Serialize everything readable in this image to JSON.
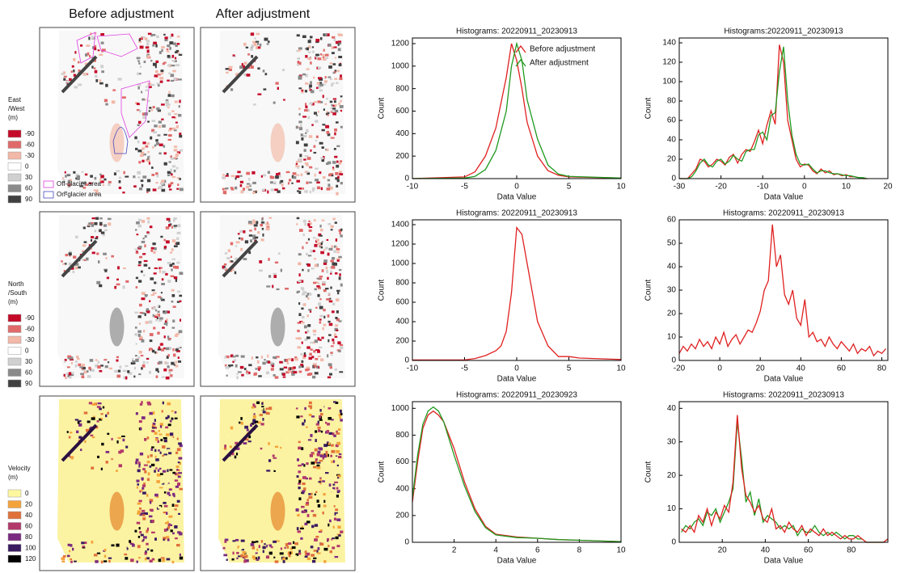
{
  "column_headers": [
    "Before adjustment",
    "After adjustment"
  ],
  "map_legends": [
    {
      "title": [
        "East",
        "/West",
        "(m)"
      ],
      "items": [
        {
          "label": -90,
          "color": "#c40a28"
        },
        {
          "label": -60,
          "color": "#e06a6a"
        },
        {
          "label": -30,
          "color": "#f2b8a8"
        },
        {
          "label": 0,
          "color": "#ffffff"
        },
        {
          "label": 30,
          "color": "#d0d0d0"
        },
        {
          "label": 60,
          "color": "#8a8a8a"
        },
        {
          "label": 90,
          "color": "#404040"
        }
      ]
    },
    {
      "title": [
        "North",
        "/South",
        "(m)"
      ],
      "items": [
        {
          "label": -90,
          "color": "#c40a28"
        },
        {
          "label": -60,
          "color": "#e06a6a"
        },
        {
          "label": -30,
          "color": "#f2b8a8"
        },
        {
          "label": 0,
          "color": "#ffffff"
        },
        {
          "label": 30,
          "color": "#d0d0d0"
        },
        {
          "label": 60,
          "color": "#8a8a8a"
        },
        {
          "label": 90,
          "color": "#404040"
        }
      ]
    },
    {
      "title": [
        "Velocity",
        "(m)"
      ],
      "items": [
        {
          "label": 0,
          "color": "#fdf7a0"
        },
        {
          "label": 20,
          "color": "#f4a23a"
        },
        {
          "label": 40,
          "color": "#e0703a"
        },
        {
          "label": 60,
          "color": "#b2386a"
        },
        {
          "label": 80,
          "color": "#7a2a80"
        },
        {
          "label": 100,
          "color": "#3a1a60"
        },
        {
          "label": 120,
          "color": "#000000"
        }
      ]
    }
  ],
  "map_outlines": [
    {
      "label": "Off-glacier area",
      "color": "#e040e0"
    },
    {
      "label": "On-glacier area",
      "color": "#4848c0"
    }
  ],
  "chart_data": [
    {
      "type": "line",
      "title": "Histograms: 20220911_20230913",
      "xlabel": "Data Value",
      "ylabel": "Count",
      "x": [
        -10,
        -5,
        -4,
        -3,
        -2,
        -1,
        -0.5,
        0,
        0.5,
        1,
        2,
        3,
        4,
        5,
        10
      ],
      "series": [
        {
          "name": "Before adjustment",
          "color": "#e02020",
          "values": [
            0,
            15,
            60,
            200,
            450,
            900,
            1200,
            1050,
            800,
            500,
            200,
            70,
            30,
            15,
            5
          ]
        },
        {
          "name": "After adjustment",
          "color": "#209a20",
          "values": [
            0,
            5,
            20,
            80,
            250,
            600,
            1000,
            1200,
            1050,
            700,
            350,
            120,
            40,
            20,
            5
          ]
        }
      ],
      "xlim": [
        -10,
        10
      ],
      "xticks": [
        -10,
        -5,
        0,
        5,
        10
      ],
      "ylim": [
        0,
        1250
      ],
      "yticks": [
        0,
        200,
        400,
        600,
        800,
        1000,
        1200
      ],
      "legend": "upper right"
    },
    {
      "type": "line",
      "title": "Histograms:20220911_20230913",
      "xlabel": "Data Value",
      "ylabel": "Count",
      "x": [
        -30,
        -29,
        -28,
        -27,
        -26,
        -25,
        -24,
        -23,
        -22,
        -21,
        -20,
        -19,
        -18,
        -17,
        -16,
        -15,
        -14,
        -13,
        -12,
        -11,
        -10,
        -9,
        -8,
        -7,
        -6,
        -5,
        -4,
        -3,
        -2,
        -1,
        0,
        1,
        2,
        3,
        4,
        5,
        6,
        7,
        8,
        9,
        10,
        11,
        12,
        13,
        14,
        15
      ],
      "series": [
        {
          "color": "#e02020",
          "values": [
            0,
            0,
            0,
            5,
            10,
            20,
            18,
            12,
            15,
            20,
            18,
            14,
            22,
            25,
            16,
            25,
            30,
            28,
            38,
            50,
            36,
            55,
            70,
            56,
            138,
            120,
            60,
            40,
            20,
            12,
            15,
            14,
            8,
            5,
            10,
            6,
            8,
            4,
            5,
            3,
            4,
            2,
            2,
            1,
            0,
            0
          ]
        },
        {
          "color": "#209a20",
          "values": [
            0,
            0,
            0,
            2,
            8,
            16,
            20,
            14,
            12,
            18,
            20,
            15,
            18,
            24,
            20,
            18,
            28,
            30,
            30,
            45,
            48,
            40,
            65,
            68,
            110,
            136,
            80,
            45,
            25,
            15,
            14,
            15,
            10,
            6,
            8,
            8,
            6,
            5,
            5,
            4,
            3,
            3,
            2,
            1,
            1,
            0
          ]
        }
      ],
      "xlim": [
        -30,
        20
      ],
      "xticks": [
        -30,
        -20,
        -10,
        0,
        10,
        20
      ],
      "ylim": [
        0,
        145
      ],
      "yticks": [
        0,
        20,
        40,
        60,
        80,
        100,
        120,
        140
      ]
    },
    {
      "type": "line",
      "title": "Histograms: 20220911_20230913",
      "xlabel": "Data Value",
      "ylabel": "Count",
      "x": [
        -10,
        -5,
        -4,
        -3,
        -2,
        -1.5,
        -1,
        -0.5,
        0,
        0.5,
        1,
        1.5,
        2,
        3,
        4,
        5,
        6,
        10
      ],
      "series": [
        {
          "color": "#e02020",
          "values": [
            5,
            5,
            20,
            50,
            100,
            150,
            300,
            700,
            1370,
            1300,
            1000,
            700,
            400,
            150,
            40,
            40,
            25,
            10
          ]
        }
      ],
      "xlim": [
        -10,
        10
      ],
      "xticks": [
        -10,
        -5,
        0,
        5,
        10
      ],
      "ylim": [
        0,
        1450
      ],
      "yticks": [
        0,
        200,
        400,
        600,
        800,
        1000,
        1200,
        1400
      ]
    },
    {
      "type": "line",
      "title": "Histograms: 20220911_20230913",
      "xlabel": "Data Value",
      "ylabel": "Count",
      "x": [
        -20,
        -18,
        -16,
        -14,
        -12,
        -10,
        -8,
        -6,
        -4,
        -2,
        0,
        2,
        4,
        6,
        8,
        10,
        12,
        14,
        16,
        18,
        20,
        22,
        24,
        26,
        28,
        30,
        32,
        34,
        36,
        38,
        40,
        42,
        44,
        46,
        48,
        50,
        52,
        54,
        56,
        58,
        60,
        62,
        64,
        66,
        68,
        70,
        72,
        74,
        76,
        78,
        80,
        82
      ],
      "series": [
        {
          "color": "#e02020",
          "values": [
            3,
            6,
            4,
            7,
            5,
            9,
            6,
            8,
            5,
            10,
            7,
            12,
            6,
            9,
            11,
            7,
            10,
            13,
            12,
            16,
            21,
            30,
            34,
            58,
            40,
            45,
            28,
            24,
            30,
            18,
            15,
            26,
            10,
            12,
            8,
            9,
            6,
            10,
            7,
            5,
            8,
            6,
            4,
            7,
            3,
            5,
            4,
            6,
            2,
            4,
            3,
            5
          ]
        }
      ],
      "xlim": [
        -20,
        83
      ],
      "xticks": [
        -20,
        0,
        20,
        40,
        60,
        80
      ],
      "ylim": [
        0,
        60
      ],
      "yticks": [
        0,
        10,
        20,
        30,
        40,
        50,
        60
      ]
    },
    {
      "type": "line",
      "title": "Histograms: 20220911_20230923",
      "xlabel": "Data Value",
      "ylabel": "Count",
      "x": [
        0,
        0.25,
        0.5,
        0.75,
        1,
        1.25,
        1.5,
        2,
        2.5,
        3,
        3.5,
        4,
        5,
        6,
        7,
        8,
        9,
        10
      ],
      "series": [
        {
          "color": "#e02020",
          "values": [
            300,
            600,
            850,
            950,
            980,
            950,
            900,
            700,
            450,
            250,
            120,
            60,
            40,
            30,
            20,
            15,
            10,
            5
          ]
        },
        {
          "color": "#209a20",
          "values": [
            330,
            650,
            880,
            980,
            1010,
            980,
            900,
            650,
            420,
            230,
            110,
            55,
            35,
            30,
            20,
            15,
            10,
            5
          ]
        }
      ],
      "xlim": [
        0,
        10
      ],
      "xticks": [
        2,
        4,
        6,
        8,
        10
      ],
      "ylim": [
        0,
        1050
      ],
      "yticks": [
        0,
        200,
        400,
        600,
        800,
        1000
      ]
    },
    {
      "type": "line",
      "title": "Histograms: 20220911_20230913",
      "xlabel": "Data Value",
      "ylabel": "Count",
      "x": [
        1,
        3,
        5,
        7,
        9,
        11,
        13,
        15,
        17,
        19,
        21,
        23,
        25,
        27,
        29,
        31,
        33,
        35,
        37,
        39,
        41,
        43,
        45,
        47,
        49,
        51,
        53,
        55,
        57,
        59,
        61,
        63,
        65,
        67,
        69,
        71,
        73,
        75,
        77,
        79,
        81,
        83,
        85,
        87,
        89,
        91,
        93,
        95,
        97
      ],
      "series": [
        {
          "color": "#209a20",
          "values": [
            3,
            5,
            4,
            6,
            7,
            5,
            9,
            8,
            10,
            6,
            9,
            12,
            16,
            36,
            25,
            12,
            15,
            8,
            13,
            6,
            8,
            7,
            6,
            4,
            5,
            4,
            5,
            2,
            4,
            3,
            3,
            5,
            3,
            2,
            3,
            2,
            3,
            2,
            1,
            2,
            2,
            1,
            1,
            0,
            0,
            0,
            0,
            0,
            1
          ]
        },
        {
          "color": "#e02020",
          "values": [
            4,
            3,
            5,
            3,
            8,
            6,
            10,
            5,
            9,
            7,
            11,
            9,
            18,
            38,
            22,
            14,
            12,
            9,
            11,
            7,
            6,
            10,
            4,
            5,
            3,
            6,
            4,
            3,
            5,
            2,
            4,
            3,
            2,
            4,
            2,
            3,
            2,
            1,
            2,
            1,
            1,
            2,
            1,
            0,
            0,
            0,
            0,
            0,
            1
          ]
        }
      ],
      "xlim": [
        0,
        97
      ],
      "xticks": [
        20,
        40,
        60,
        80
      ],
      "ylim": [
        0,
        42
      ],
      "yticks": [
        0,
        10,
        20,
        30,
        40
      ]
    }
  ]
}
